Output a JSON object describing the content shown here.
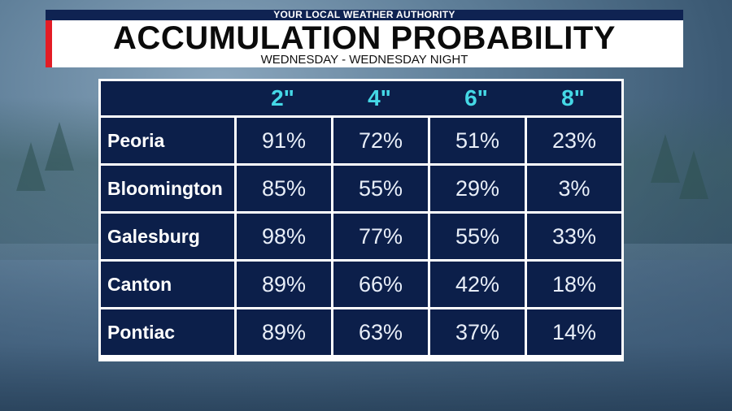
{
  "header": {
    "tagline": "YOUR LOCAL WEATHER AUTHORITY",
    "title": "ACCUMULATION PROBABILITY",
    "subtitle": "WEDNESDAY - WEDNESDAY NIGHT"
  },
  "colors": {
    "table_bg": "#0c1f4a",
    "header_text": "#45d8e6",
    "accent_red": "#e31c25",
    "strip_bg": "#0f2352"
  },
  "chart_data": {
    "type": "table",
    "title": "ACCUMULATION PROBABILITY",
    "subtitle": "WEDNESDAY - WEDNESDAY NIGHT",
    "columns": [
      "2\"",
      "4\"",
      "6\"",
      "8\""
    ],
    "rows": [
      {
        "city": "Peoria",
        "values": [
          "91%",
          "72%",
          "51%",
          "23%"
        ]
      },
      {
        "city": "Bloomington",
        "values": [
          "85%",
          "55%",
          "29%",
          "3%"
        ]
      },
      {
        "city": "Galesburg",
        "values": [
          "98%",
          "77%",
          "55%",
          "33%"
        ]
      },
      {
        "city": "Canton",
        "values": [
          "89%",
          "66%",
          "42%",
          "18%"
        ]
      },
      {
        "city": "Pontiac",
        "values": [
          "89%",
          "63%",
          "37%",
          "14%"
        ]
      }
    ]
  }
}
